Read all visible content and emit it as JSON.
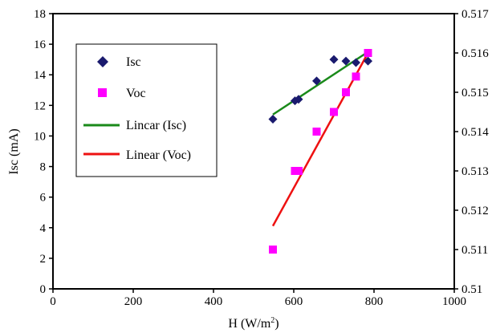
{
  "chart_data": {
    "type": "scatter",
    "xlabel": "H (W/m",
    "xlabel_sup": "2",
    "xlabel_end": ")",
    "ylabel": "Isc (mA)",
    "xlim": [
      0,
      1000
    ],
    "ylim": [
      0,
      18
    ],
    "y2lim": [
      0.51,
      0.517
    ],
    "x_ticks": [
      0,
      200,
      400,
      600,
      800,
      1000
    ],
    "x_tick_labels": [
      "0",
      "200",
      "400",
      "600",
      "800",
      "1000"
    ],
    "y_ticks": [
      0,
      2,
      4,
      6,
      8,
      10,
      12,
      14,
      16,
      18
    ],
    "y_tick_labels": [
      "0",
      "2",
      "4",
      "6",
      "8",
      "10",
      "12",
      "14",
      "16",
      "18"
    ],
    "y2_ticks": [
      0.51,
      0.511,
      0.512,
      0.513,
      0.514,
      0.515,
      0.516,
      0.517
    ],
    "y2_tick_labels": [
      "0.51",
      "0.511",
      "0.512",
      "0.513",
      "0.514",
      "0.515",
      "0.516",
      "0.517"
    ],
    "grid": false,
    "legend_position": "top-left",
    "series": [
      {
        "name": "Isc",
        "axis": "left",
        "marker": "diamond",
        "color": "#1a1a6e",
        "x": [
          548,
          603,
          612,
          657,
          700,
          730,
          755,
          785
        ],
        "y": [
          11.1,
          12.3,
          12.4,
          13.6,
          15.0,
          14.9,
          14.8,
          14.9
        ]
      },
      {
        "name": "Voc",
        "axis": "right",
        "marker": "square",
        "color": "#ff00ff",
        "x": [
          548,
          603,
          612,
          657,
          700,
          730,
          755,
          785
        ],
        "y": [
          0.511,
          0.513,
          0.513,
          0.514,
          0.5145,
          0.515,
          0.5154,
          0.516
        ]
      }
    ],
    "trendlines": [
      {
        "name": "Lincar (Isc)",
        "axis": "left",
        "color": "#1a8a1a",
        "x": [
          548,
          785
        ],
        "y": [
          11.4,
          15.5
        ]
      },
      {
        "name": "Linear (Voc)",
        "axis": "right",
        "color": "#ee1111",
        "x": [
          548,
          785
        ],
        "y": [
          0.5116,
          0.516
        ]
      }
    ]
  }
}
